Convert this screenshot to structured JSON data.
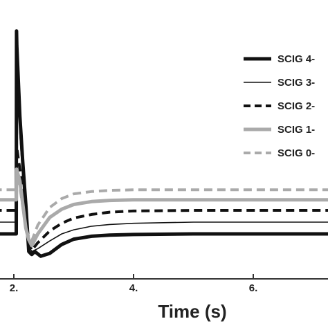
{
  "chart_data": {
    "type": "line",
    "xlabel": "Time (s)",
    "ylabel": "",
    "xlim": [
      1.0,
      8.0
    ],
    "ylim": [
      -0.45,
      3.5
    ],
    "x_ticks": [
      2,
      4,
      6
    ],
    "x_tick_labels": [
      "2.",
      "4.",
      "6."
    ],
    "grid": false,
    "legend_position": "right",
    "series": [
      {
        "name": "SCIG 4-",
        "color": "#111111",
        "style": "solid-thick",
        "x": [
          1.0,
          2.04,
          2.045,
          2.05,
          2.1,
          2.15,
          2.2,
          2.25,
          2.3,
          2.35,
          2.45,
          2.6,
          2.8,
          3.0,
          3.3,
          3.6,
          4.0,
          5.0,
          8.0
        ],
        "y": [
          0.0,
          0.0,
          3.45,
          3.2,
          2.0,
          1.2,
          0.5,
          -0.3,
          -0.35,
          -0.3,
          -0.38,
          -0.33,
          -0.18,
          -0.09,
          -0.04,
          -0.02,
          -0.01,
          0.0,
          0.0
        ]
      },
      {
        "name": "SCIG 3-",
        "color": "#111111",
        "style": "solid-thin",
        "x": [
          1.0,
          2.04,
          2.045,
          2.1,
          2.15,
          2.2,
          2.25,
          2.3,
          2.4,
          2.6,
          2.8,
          3.0,
          3.3,
          3.6,
          4.0,
          5.0,
          8.0
        ],
        "y": [
          0.2,
          0.2,
          3.3,
          1.7,
          0.9,
          0.3,
          -0.2,
          -0.3,
          -0.25,
          -0.12,
          0.0,
          0.07,
          0.13,
          0.16,
          0.18,
          0.2,
          0.2
        ]
      },
      {
        "name": "SCIG 2-",
        "color": "#111111",
        "style": "dashed-thick",
        "x": [
          1.0,
          2.04,
          2.045,
          2.1,
          2.15,
          2.2,
          2.25,
          2.3,
          2.4,
          2.6,
          2.8,
          3.0,
          3.3,
          3.6,
          4.0,
          5.0,
          8.0
        ],
        "y": [
          0.4,
          0.4,
          1.5,
          1.1,
          0.7,
          0.2,
          -0.15,
          -0.28,
          -0.15,
          0.05,
          0.18,
          0.27,
          0.33,
          0.37,
          0.39,
          0.4,
          0.4
        ]
      },
      {
        "name": "SCIG 1-",
        "color": "#aaaaaa",
        "style": "solid-thick",
        "x": [
          1.0,
          2.04,
          2.045,
          2.1,
          2.15,
          2.2,
          2.25,
          2.3,
          2.4,
          2.6,
          2.8,
          3.0,
          3.3,
          3.6,
          4.0,
          5.0,
          8.0
        ],
        "y": [
          0.58,
          0.58,
          1.1,
          0.9,
          0.5,
          0.1,
          -0.1,
          -0.2,
          0.0,
          0.28,
          0.42,
          0.5,
          0.55,
          0.57,
          0.58,
          0.58,
          0.58
        ]
      },
      {
        "name": "SCIG 0-",
        "color": "#aaaaaa",
        "style": "dashed-thick",
        "x": [
          1.0,
          2.04,
          2.045,
          2.1,
          2.15,
          2.2,
          2.25,
          2.3,
          2.4,
          2.6,
          2.8,
          3.0,
          3.3,
          3.6,
          4.0,
          5.0,
          8.0
        ],
        "y": [
          0.75,
          0.75,
          1.0,
          0.8,
          0.45,
          0.1,
          -0.05,
          -0.12,
          0.15,
          0.45,
          0.6,
          0.68,
          0.72,
          0.74,
          0.75,
          0.75,
          0.75
        ]
      }
    ]
  }
}
